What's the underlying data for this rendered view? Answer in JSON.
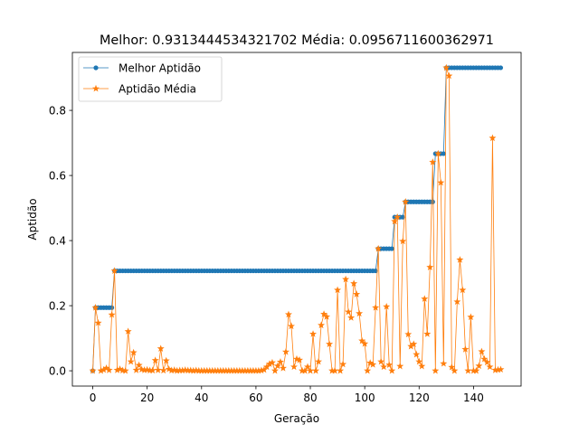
{
  "chart_data": {
    "type": "line",
    "title": "Melhor: 0.9313444534321702 Média: 0.0956711600362971",
    "xlabel": "Geração",
    "ylabel": "Aptidão",
    "xlim": [
      -7.5,
      157.5
    ],
    "ylim": [
      -0.047,
      0.978
    ],
    "xticks": [
      0,
      20,
      40,
      60,
      80,
      100,
      120,
      140
    ],
    "yticks": [
      0.0,
      0.2,
      0.4,
      0.6,
      0.8
    ],
    "xtick_labels": [
      "0",
      "20",
      "40",
      "60",
      "80",
      "100",
      "120",
      "140"
    ],
    "ytick_labels": [
      "0.0",
      "0.2",
      "0.4",
      "0.6",
      "0.8"
    ],
    "grid": false,
    "legend_position": "top-left",
    "colors": {
      "best": "#1f77b4",
      "mean": "#ff7f0e"
    },
    "series": [
      {
        "name": "Melhor Aptidão",
        "marker": "circle",
        "segments": [
          {
            "from": 0,
            "to": 0,
            "value": 0.0
          },
          {
            "from": 1,
            "to": 7,
            "value": 0.194
          },
          {
            "from": 8,
            "to": 104,
            "value": 0.307
          },
          {
            "from": 105,
            "to": 110,
            "value": 0.375
          },
          {
            "from": 111,
            "to": 114,
            "value": 0.472
          },
          {
            "from": 115,
            "to": 125,
            "value": 0.519
          },
          {
            "from": 126,
            "to": 129,
            "value": 0.667
          },
          {
            "from": 130,
            "to": 150,
            "value": 0.931
          }
        ]
      },
      {
        "name": "Aptidão Média",
        "marker": "star",
        "x": [
          0,
          1,
          2,
          3,
          4,
          5,
          6,
          7,
          8,
          9,
          10,
          11,
          12,
          13,
          14,
          15,
          16,
          17,
          18,
          19,
          20,
          21,
          22,
          23,
          24,
          25,
          26,
          27,
          28,
          29,
          30,
          31,
          32,
          33,
          34,
          35,
          36,
          37,
          38,
          39,
          40,
          41,
          42,
          43,
          44,
          45,
          46,
          47,
          48,
          49,
          50,
          51,
          52,
          53,
          54,
          55,
          56,
          57,
          58,
          59,
          60,
          61,
          62,
          63,
          64,
          65,
          66,
          67,
          68,
          69,
          70,
          71,
          72,
          73,
          74,
          75,
          76,
          77,
          78,
          79,
          80,
          81,
          82,
          83,
          84,
          85,
          86,
          87,
          88,
          89,
          90,
          91,
          92,
          93,
          94,
          95,
          96,
          97,
          98,
          99,
          100,
          101,
          102,
          103,
          104,
          105,
          106,
          107,
          108,
          109,
          110,
          111,
          112,
          113,
          114,
          115,
          116,
          117,
          118,
          119,
          120,
          121,
          122,
          123,
          124,
          125,
          126,
          127,
          128,
          129,
          130,
          131,
          132,
          133,
          134,
          135,
          136,
          137,
          138,
          139,
          140,
          141,
          142,
          143,
          144,
          145,
          146,
          147,
          148,
          149,
          150
        ],
        "values": [
          0.0,
          0.194,
          0.147,
          0.0,
          0.003,
          0.008,
          0.002,
          0.172,
          0.307,
          0.002,
          0.005,
          0.001,
          0.0,
          0.121,
          0.028,
          0.056,
          0.002,
          0.017,
          0.004,
          0.002,
          0.003,
          0.001,
          0.001,
          0.032,
          0.002,
          0.068,
          0.001,
          0.031,
          0.005,
          0.001,
          0.002,
          0.0,
          0.001,
          0.001,
          0.002,
          0.001,
          0.001,
          0.0,
          0.001,
          0.0,
          0.0,
          0.0,
          0.0,
          0.0,
          0.0,
          0.0,
          0.0,
          0.0,
          0.0,
          0.0,
          0.0,
          0.0,
          0.0,
          0.0,
          0.0,
          0.0,
          0.0,
          0.0,
          0.0,
          0.0,
          0.0,
          0.0,
          0.001,
          0.003,
          0.012,
          0.021,
          0.025,
          0.0,
          0.015,
          0.027,
          0.008,
          0.058,
          0.173,
          0.137,
          0.012,
          0.036,
          0.033,
          0.0,
          0.0,
          0.012,
          0.0,
          0.113,
          0.0,
          0.028,
          0.14,
          0.174,
          0.166,
          0.082,
          0.0,
          0.0,
          0.248,
          0.0,
          0.02,
          0.281,
          0.181,
          0.163,
          0.268,
          0.235,
          0.176,
          0.092,
          0.083,
          0.0,
          0.024,
          0.019,
          0.194,
          0.375,
          0.028,
          0.012,
          0.197,
          0.018,
          0.0,
          0.459,
          0.472,
          0.014,
          0.398,
          0.519,
          0.112,
          0.075,
          0.082,
          0.05,
          0.028,
          0.014,
          0.221,
          0.113,
          0.318,
          0.641,
          0.0,
          0.667,
          0.578,
          0.022,
          0.931,
          0.906,
          0.011,
          0.0,
          0.212,
          0.341,
          0.248,
          0.066,
          0.0,
          0.165,
          0.0,
          0.0,
          0.015,
          0.059,
          0.036,
          0.026,
          0.012,
          0.715,
          0.002,
          0.003,
          0.004
        ]
      }
    ]
  }
}
